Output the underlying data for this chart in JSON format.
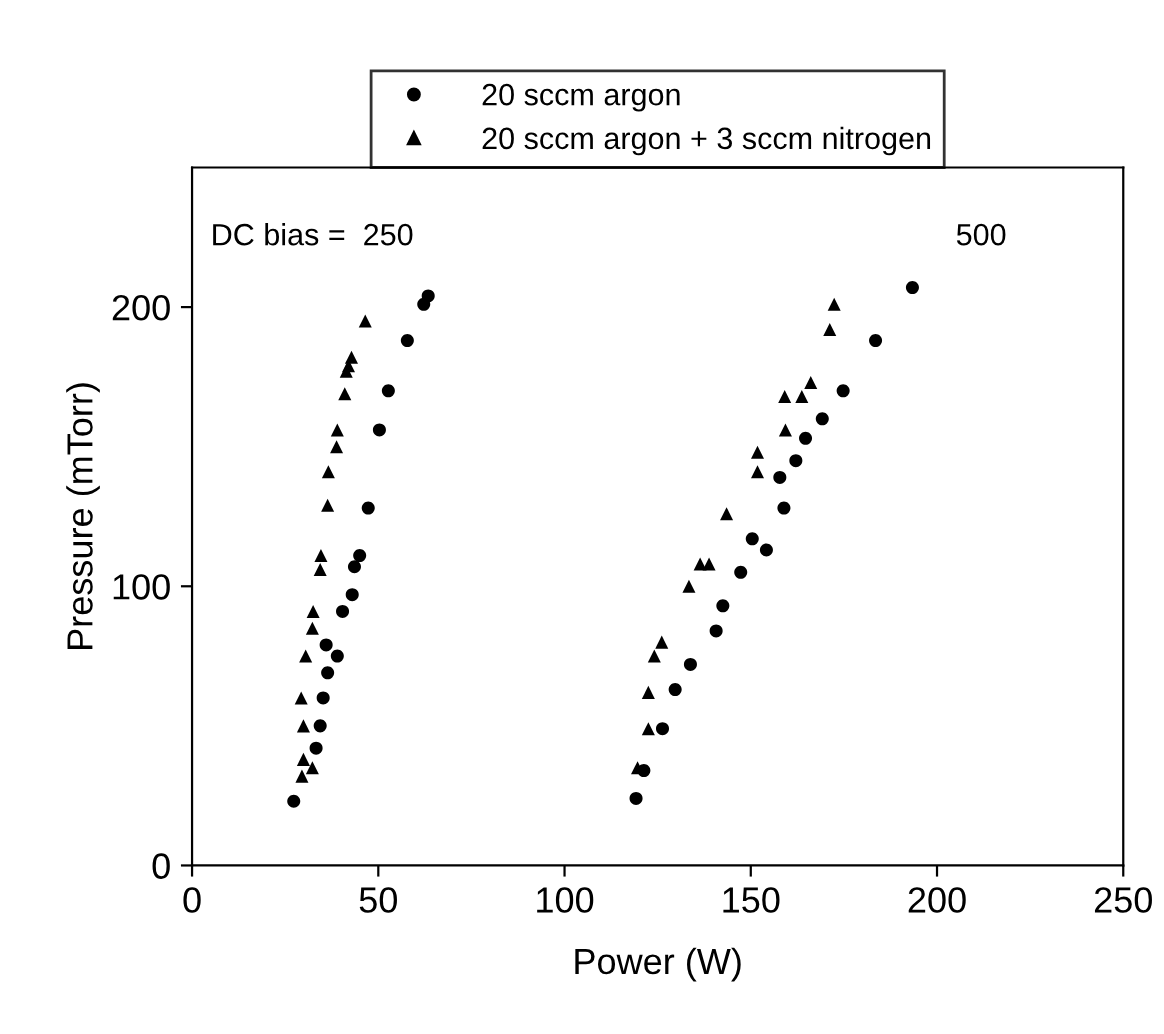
{
  "chart_data": {
    "type": "scatter",
    "xlabel": "Power (W)",
    "ylabel": "Pressure (mTorr)",
    "annotations": [
      "DC bias =  250",
      "500"
    ],
    "xlim": [
      0,
      250
    ],
    "xticks": [
      0,
      50,
      100,
      150,
      200,
      250
    ],
    "ylim": [
      0,
      250
    ],
    "yticks": [
      0,
      100,
      200
    ],
    "grid": false,
    "legend": "top",
    "series": [
      {
        "name": "20 sccm argon",
        "color": "#000000",
        "marker": "circle",
        "x": [
          27.3,
          33.3,
          34.4,
          35.2,
          36.4,
          36,
          39,
          40.4,
          43,
          43.6,
          45,
          47.3,
          50.3,
          52.7,
          57.8,
          62.2,
          63.4,
          119.2,
          121.3,
          126.3,
          129.7,
          133.8,
          140.7,
          142.5,
          147.3,
          150.4,
          154.2,
          157.8,
          158.9,
          162.1,
          164.7,
          169.2,
          174.8,
          183.5,
          193.4
        ],
        "values": [
          23,
          42,
          50,
          60,
          69,
          79,
          75,
          91,
          97,
          107,
          111,
          128,
          156,
          170,
          188,
          201,
          204,
          24,
          34,
          49,
          63,
          72,
          84,
          93,
          105,
          117,
          113,
          139,
          128,
          145,
          153,
          160,
          170,
          188,
          207
        ]
      },
      {
        "name": "20 sccm argon + 3 sccm nitrogen",
        "color": "#000000",
        "marker": "triangle",
        "x": [
          29.5,
          29.9,
          32.3,
          29.9,
          29.3,
          30.5,
          32.3,
          32.5,
          34.4,
          34.6,
          36.4,
          36.6,
          38.8,
          39,
          41,
          41.4,
          42,
          42.8,
          46.5,
          119.6,
          122.5,
          122.5,
          124.1,
          126.1,
          133.4,
          136.4,
          138.8,
          143.5,
          151.8,
          151.8,
          159.3,
          159.1,
          163.7,
          166.1,
          171.2,
          172.4
        ],
        "values": [
          32,
          38,
          35,
          50,
          60,
          75,
          85,
          91,
          106,
          111,
          129,
          141,
          150,
          156,
          169,
          177,
          179,
          182,
          195,
          35,
          49,
          62,
          75,
          80,
          100,
          108,
          108,
          126,
          141,
          148,
          156,
          168,
          168,
          173,
          192,
          201
        ]
      }
    ]
  }
}
